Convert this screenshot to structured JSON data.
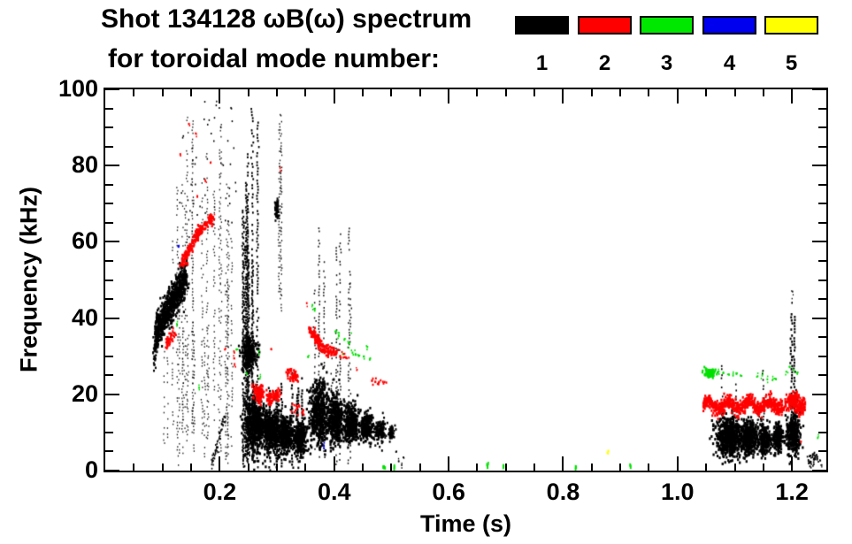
{
  "title": {
    "line1": "Shot 134128 ωB(ω) spectrum",
    "line2": "for toroidal mode number:"
  },
  "legend": {
    "items": [
      {
        "label": "1",
        "color": "#000000"
      },
      {
        "label": "2",
        "color": "#FF0000"
      },
      {
        "label": "3",
        "color": "#00E800"
      },
      {
        "label": "4",
        "color": "#0000EE"
      },
      {
        "label": "5",
        "color": "#FFFF00"
      }
    ]
  },
  "chart_data": {
    "type": "scatter",
    "title": "Shot 134128 ωB(ω) spectrum for toroidal mode number: 1 2 3 4 5",
    "xlabel": "Time (s)",
    "ylabel": "Frequency (kHz)",
    "xlim": [
      0,
      1.26
    ],
    "ylim": [
      0,
      100
    ],
    "x_major_ticks": [
      0.2,
      0.4,
      0.6,
      0.8,
      1.0,
      1.2
    ],
    "x_tick_labels": [
      "0.2",
      "0.4",
      "0.6",
      "0.8",
      "1.0",
      "1.2"
    ],
    "x_minor_step": 0.05,
    "y_major_ticks": [
      0,
      20,
      40,
      60,
      80,
      100
    ],
    "y_tick_labels": [
      "0",
      "20",
      "40",
      "60",
      "80",
      "100"
    ],
    "y_minor_step": 5,
    "grid": false,
    "legend_position": "top-right",
    "mode_colors": {
      "1": "#000000",
      "2": "#FF0000",
      "3": "#00E800",
      "4": "#0000EE",
      "5": "#FFFF00"
    },
    "features": [
      {
        "c": "#000000",
        "type": "streak",
        "t0": 0.085,
        "f0": 30,
        "t1": 0.093,
        "f1": 37,
        "th": 4,
        "n": 70,
        "s": 2
      },
      {
        "c": "#000000",
        "type": "streak",
        "t0": 0.088,
        "f0": 36.5,
        "t1": 0.143,
        "f1": 51,
        "th": 6,
        "n": 750,
        "s": 2.2
      },
      {
        "c": "#000000",
        "type": "vlines",
        "t0": 0.1,
        "t1": 0.225,
        "nl": 26,
        "fb": [
          0,
          12
        ],
        "ft": [
          18,
          95
        ],
        "dash": 0.45,
        "s": 1.3,
        "a": 0.85
      },
      {
        "c": "#000000",
        "type": "dots_range",
        "t": [
          0.13,
          0.23
        ],
        "f": [
          60,
          97
        ],
        "n": 55,
        "s": 1.5
      },
      {
        "c": "#000000",
        "type": "streak",
        "t0": 0.185,
        "f0": 0.5,
        "t1": 0.208,
        "f1": 14,
        "th": 1.5,
        "n": 60,
        "s": 1.5
      },
      {
        "c": "#000000",
        "type": "vlines",
        "t0": 0.235,
        "t1": 0.272,
        "nl": 12,
        "fb": [
          0,
          6
        ],
        "ft": [
          55,
          97
        ],
        "dash": 0.7,
        "s": 1.8
      },
      {
        "c": "#000000",
        "type": "blob",
        "t": 0.252,
        "f": 31,
        "rt": 0.011,
        "rf": 4.0,
        "n": 260,
        "s": 2.2
      },
      {
        "c": "#000000",
        "type": "blob",
        "t": 0.262,
        "f": 12,
        "rt": 0.016,
        "rf": 6.0,
        "n": 550,
        "s": 2.3
      },
      {
        "c": "#000000",
        "type": "blob",
        "t": 0.29,
        "f": 10.5,
        "rt": 0.015,
        "rf": 5.0,
        "n": 420,
        "s": 2.3
      },
      {
        "c": "#000000",
        "type": "blob",
        "t": 0.315,
        "f": 9.5,
        "rt": 0.013,
        "rf": 4.5,
        "n": 350,
        "s": 2.3
      },
      {
        "c": "#000000",
        "type": "blob",
        "t": 0.34,
        "f": 8.5,
        "rt": 0.012,
        "rf": 4.0,
        "n": 300,
        "s": 2.3
      },
      {
        "c": "#000000",
        "type": "vlines",
        "t0": 0.25,
        "t1": 0.35,
        "nl": 10,
        "fb": [
          0,
          4
        ],
        "ft": [
          15,
          27
        ],
        "dash": 0.8,
        "s": 2
      },
      {
        "c": "#000000",
        "type": "vlines",
        "t0": 0.282,
        "t1": 0.308,
        "nl": 3,
        "fb": [
          40,
          50
        ],
        "ft": [
          80,
          95
        ],
        "dash": 0.5,
        "s": 1.3,
        "a": 0.9
      },
      {
        "c": "#000000",
        "type": "blob",
        "t": 0.3,
        "f": 68.5,
        "rt": 0.003,
        "rf": 2.5,
        "n": 60,
        "s": 2
      },
      {
        "c": "#000000",
        "type": "blob",
        "t": 0.373,
        "f": 15,
        "rt": 0.014,
        "rf": 7.0,
        "n": 500,
        "s": 2.3
      },
      {
        "c": "#000000",
        "type": "blob",
        "t": 0.402,
        "f": 13.5,
        "rt": 0.014,
        "rf": 5.5,
        "n": 420,
        "s": 2.3
      },
      {
        "c": "#000000",
        "type": "blob",
        "t": 0.43,
        "f": 12.5,
        "rt": 0.012,
        "rf": 4.5,
        "n": 330,
        "s": 2.3
      },
      {
        "c": "#000000",
        "type": "blob",
        "t": 0.457,
        "f": 11.5,
        "rt": 0.01,
        "rf": 3.5,
        "n": 240,
        "s": 2.2
      },
      {
        "c": "#000000",
        "type": "blob",
        "t": 0.48,
        "f": 10.5,
        "rt": 0.008,
        "rf": 2.8,
        "n": 150,
        "s": 2
      },
      {
        "c": "#000000",
        "type": "blob",
        "t": 0.5,
        "f": 10,
        "rt": 0.005,
        "rf": 1.5,
        "n": 60,
        "s": 2
      },
      {
        "c": "#000000",
        "type": "vlines",
        "t0": 0.358,
        "t1": 0.43,
        "nl": 9,
        "fb": [
          0,
          8
        ],
        "ft": [
          28,
          72
        ],
        "dash": 0.5,
        "s": 1.5,
        "a": 0.9
      },
      {
        "c": "#000000",
        "type": "dots",
        "pts": [
          [
            0.513,
            2.5
          ],
          [
            0.518,
            1.5
          ],
          [
            0.508,
            5
          ],
          [
            0.521,
            3.5
          ]
        ],
        "s": 1.6
      },
      {
        "c": "#000000",
        "type": "blob",
        "t": 1.09,
        "f": 9,
        "rt": 0.02,
        "rf": 4.5,
        "n": 600,
        "s": 2.3
      },
      {
        "c": "#000000",
        "type": "blob",
        "t": 1.125,
        "f": 8.5,
        "rt": 0.014,
        "rf": 4.0,
        "n": 380,
        "s": 2.3
      },
      {
        "c": "#000000",
        "type": "blob",
        "t": 1.153,
        "f": 8,
        "rt": 0.01,
        "rf": 3.5,
        "n": 260,
        "s": 2.3
      },
      {
        "c": "#000000",
        "type": "blob",
        "t": 1.175,
        "f": 8.5,
        "rt": 0.008,
        "rf": 3.2,
        "n": 200,
        "s": 2.3
      },
      {
        "c": "#000000",
        "type": "blob",
        "t": 1.202,
        "f": 9.5,
        "rt": 0.011,
        "rf": 5.0,
        "n": 320,
        "s": 2.3
      },
      {
        "c": "#000000",
        "type": "vlines",
        "t0": 1.07,
        "t1": 1.16,
        "nl": 5,
        "fb": [
          12,
          14
        ],
        "ft": [
          17,
          28
        ],
        "dash": 0.6,
        "s": 1.6
      },
      {
        "c": "#000000",
        "type": "vlines",
        "t0": 1.197,
        "t1": 1.205,
        "nl": 2,
        "fb": [
          14,
          16
        ],
        "ft": [
          38,
          42
        ],
        "dash": 0.85,
        "s": 2
      },
      {
        "c": "#000000",
        "type": "dots",
        "pts": [
          [
            1.2,
            44
          ],
          [
            1.201,
            47
          ]
        ],
        "s": 1.5
      },
      {
        "c": "#000000",
        "type": "streak",
        "t0": 1.228,
        "f0": 2.2,
        "t1": 1.245,
        "f1": 3.8,
        "th": 2.5,
        "n": 40,
        "s": 1.6
      },
      {
        "c": "#000000",
        "type": "dots",
        "pts": [
          [
            1.252,
            1.5
          ],
          [
            1.249,
            2.8
          ]
        ],
        "s": 1.5
      },
      {
        "c": "#FF0000",
        "type": "streak",
        "t0": 0.134,
        "f0": 54.5,
        "t1": 0.162,
        "f1": 62.5,
        "th": 2.2,
        "n": 110,
        "s": 2.2
      },
      {
        "c": "#FF0000",
        "type": "streak",
        "t0": 0.162,
        "f0": 62.5,
        "t1": 0.187,
        "f1": 66.5,
        "th": 2.0,
        "n": 80,
        "s": 2.2
      },
      {
        "c": "#FF0000",
        "type": "dots",
        "pts": [
          [
            0.131,
            83
          ],
          [
            0.146,
            91
          ],
          [
            0.158,
            88.5
          ],
          [
            0.161,
            72
          ],
          [
            0.184,
            80.8
          ],
          [
            0.175,
            76
          ],
          [
            0.19,
            66
          ]
        ],
        "s": 1.8
      },
      {
        "c": "#FF0000",
        "type": "streak",
        "t0": 0.106,
        "f0": 33,
        "t1": 0.122,
        "f1": 37,
        "th": 2,
        "n": 45,
        "s": 2
      },
      {
        "c": "#FF0000",
        "type": "dots",
        "pts": [
          [
            0.21,
            32
          ],
          [
            0.225,
            29.5
          ],
          [
            0.2255,
            31
          ],
          [
            0.226,
            28
          ]
        ],
        "s": 1.8
      },
      {
        "c": "#FF0000",
        "type": "blob",
        "t": 0.268,
        "f": 20.5,
        "rt": 0.007,
        "rf": 2.0,
        "n": 130,
        "s": 2.2
      },
      {
        "c": "#FF0000",
        "type": "streak",
        "t0": 0.283,
        "f0": 19,
        "t1": 0.306,
        "f1": 20.5,
        "th": 2.2,
        "n": 70,
        "s": 2.2
      },
      {
        "c": "#FF0000",
        "type": "streak",
        "t0": 0.318,
        "f0": 25.8,
        "t1": 0.336,
        "f1": 24.6,
        "th": 1.8,
        "n": 45,
        "s": 2.2
      },
      {
        "c": "#FF0000",
        "type": "dots_range",
        "t": [
          0.325,
          0.347
        ],
        "f": [
          14.5,
          17.5
        ],
        "n": 18,
        "s": 2
      },
      {
        "c": "#FF0000",
        "type": "dots",
        "pts": [
          [
            0.29,
            32
          ],
          [
            0.306,
            78.6
          ],
          [
            0.352,
            44
          ]
        ],
        "s": 1.7
      },
      {
        "c": "#FF0000",
        "type": "streak",
        "t0": 0.357,
        "f0": 37,
        "t1": 0.382,
        "f1": 32,
        "th": 2,
        "n": 90,
        "s": 2.2
      },
      {
        "c": "#FF0000",
        "type": "streak",
        "t0": 0.382,
        "f0": 32,
        "t1": 0.406,
        "f1": 30.8,
        "th": 1.8,
        "n": 50,
        "s": 2.2
      },
      {
        "c": "#FF0000",
        "type": "dots_range",
        "t": [
          0.408,
          0.426
        ],
        "f": [
          29.5,
          31.5
        ],
        "n": 12,
        "s": 1.8
      },
      {
        "c": "#FF0000",
        "type": "dots_range",
        "t": [
          0.466,
          0.492
        ],
        "f": [
          22,
          25
        ],
        "n": 16,
        "s": 1.9
      },
      {
        "c": "#FF0000",
        "type": "dots",
        "pts": [
          [
            0.44,
            26.5
          ]
        ],
        "s": 1.6
      },
      {
        "c": "#FF0000",
        "type": "wband",
        "t0": 1.045,
        "t1": 1.223,
        "fc": 17.3,
        "amp": 1.0,
        "waves": 5,
        "th": 2.6,
        "n": 850,
        "s": 2.2
      },
      {
        "c": "#FF0000",
        "type": "blob",
        "t": 1.205,
        "f": 19.2,
        "rt": 0.006,
        "rf": 1.4,
        "n": 60,
        "s": 2.2
      },
      {
        "c": "#FF0000",
        "type": "dots",
        "pts": [
          [
            1.215,
            7.5
          ]
        ],
        "s": 1.7
      },
      {
        "c": "#00E000",
        "type": "dots",
        "pts": [
          [
            0.125,
            38.5
          ],
          [
            0.164,
            21.8
          ],
          [
            0.229,
            31.8
          ],
          [
            0.247,
            25.5
          ],
          [
            0.269,
            30.6
          ],
          [
            0.27,
            24.2
          ],
          [
            0.354,
            29.9
          ],
          [
            0.362,
            43.5
          ],
          [
            0.366,
            42
          ]
        ],
        "s": 1.8
      },
      {
        "c": "#00E000",
        "type": "dots",
        "pts": [
          [
            0.403,
            36.5
          ],
          [
            0.408,
            35.5
          ],
          [
            0.418,
            34.5
          ],
          [
            0.425,
            33.5
          ],
          [
            0.432,
            31
          ],
          [
            0.437,
            30.5
          ],
          [
            0.443,
            30.2
          ],
          [
            0.452,
            30
          ],
          [
            0.458,
            32.5
          ],
          [
            0.463,
            29.5
          ]
        ],
        "s": 1.9
      },
      {
        "c": "#00E000",
        "type": "dots_range",
        "t": [
          0.4,
          0.465
        ],
        "f": [
          29,
          36.5
        ],
        "n": 8,
        "s": 1.5
      },
      {
        "c": "#00E000",
        "type": "dots",
        "pts": [
          [
            0.487,
            1.2
          ],
          [
            0.505,
            1.2
          ],
          [
            0.668,
            1.3
          ],
          [
            0.696,
            1.4
          ],
          [
            0.822,
            1.2
          ],
          [
            0.918,
            1.3
          ]
        ],
        "s": 2,
        "tall": true
      },
      {
        "c": "#00E000",
        "type": "blob",
        "t": 1.056,
        "f": 25.5,
        "rt": 0.009,
        "rf": 1.2,
        "n": 70,
        "s": 2.1
      },
      {
        "c": "#00E000",
        "type": "dots",
        "pts": [
          [
            1.072,
            26
          ],
          [
            1.08,
            25.8
          ],
          [
            1.09,
            25.2
          ],
          [
            1.097,
            25
          ],
          [
            1.103,
            25.4
          ],
          [
            1.11,
            25
          ],
          [
            1.14,
            24.8
          ],
          [
            1.148,
            25
          ],
          [
            1.157,
            24
          ],
          [
            1.166,
            23.8
          ],
          [
            1.172,
            24
          ],
          [
            1.19,
            26
          ],
          [
            1.196,
            27.3
          ],
          [
            1.203,
            26.5
          ],
          [
            1.21,
            25.8
          ]
        ],
        "s": 1.8
      },
      {
        "c": "#00E000",
        "type": "dots",
        "pts": [
          [
            1.245,
            8.6
          ]
        ],
        "s": 1.8
      },
      {
        "c": "#0000EE",
        "type": "dots",
        "pts": [
          [
            0.128,
            58.8
          ],
          [
            0.382,
            6.5
          ]
        ],
        "s": 2
      },
      {
        "c": "#FFFF00",
        "type": "dots",
        "pts": [
          [
            0.879,
            5.2
          ]
        ],
        "s": 2.2
      }
    ]
  }
}
